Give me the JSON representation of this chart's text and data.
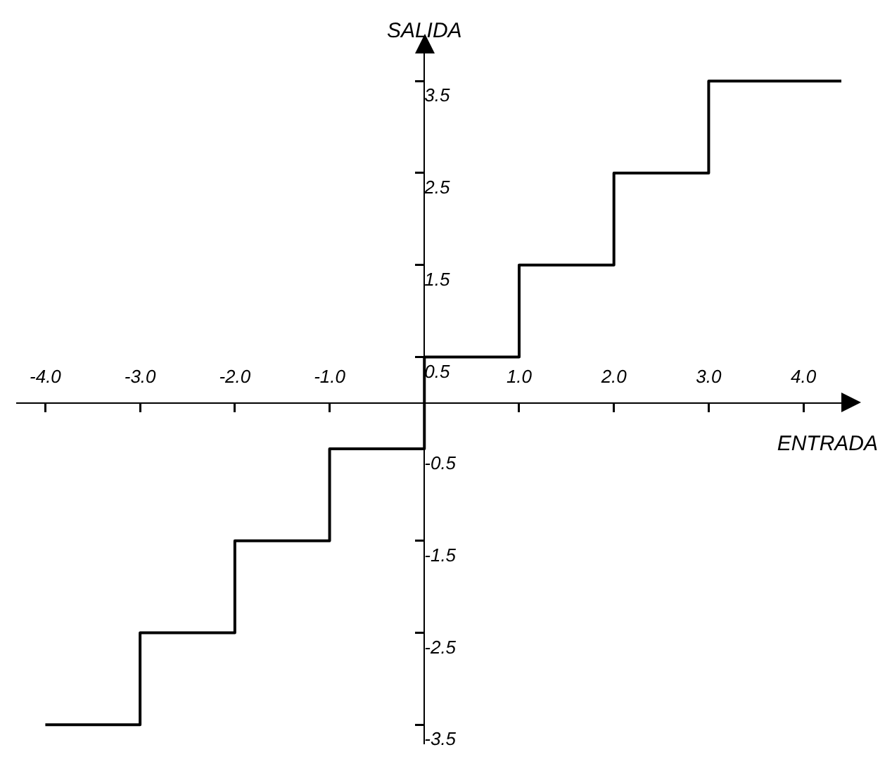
{
  "chart_data": {
    "type": "step",
    "xlabel": "ENTRADA",
    "ylabel": "SALIDA",
    "x": [
      -4.0,
      -3.0,
      -2.0,
      -1.0,
      0.0,
      1.0,
      2.0,
      3.0,
      4.4
    ],
    "series": [
      {
        "color": "#000000",
        "values": [
          -3.5,
          -2.5,
          -1.5,
          -0.5,
          0.5,
          1.5,
          2.5,
          3.5,
          3.5
        ]
      }
    ],
    "xlim": [
      -4.3,
      4.4
    ],
    "ylim": [
      -3.7,
      3.8
    ],
    "xticks": [
      {
        "value": -4,
        "label": "-4.0"
      },
      {
        "value": -3,
        "label": "-3.0"
      },
      {
        "value": -2,
        "label": "-2.0"
      },
      {
        "value": -1,
        "label": "-1.0"
      },
      {
        "value": 1,
        "label": "1.0"
      },
      {
        "value": 2,
        "label": "2.0"
      },
      {
        "value": 3,
        "label": "3.0"
      },
      {
        "value": 4,
        "label": "4.0"
      }
    ],
    "yticks": [
      -3.5,
      -2.5,
      -1.5,
      -0.5,
      0.5,
      1.5,
      2.5,
      3.5
    ],
    "grid": false,
    "legend": false,
    "marker": "none",
    "line_style": "solid"
  }
}
